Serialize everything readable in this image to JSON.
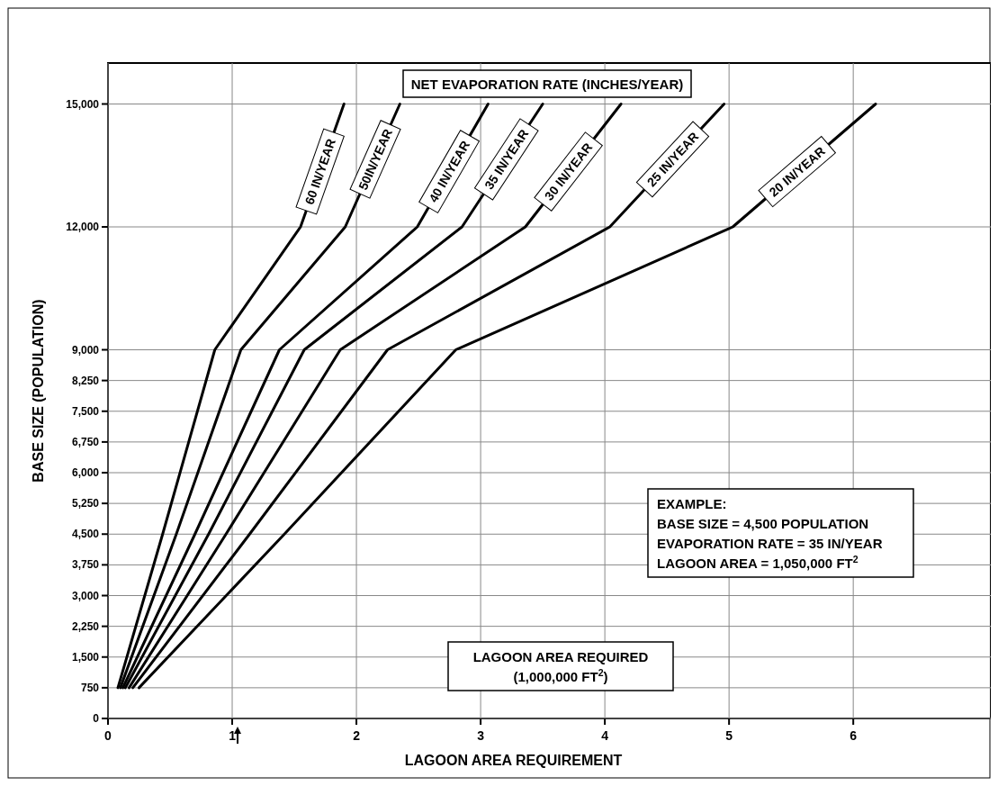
{
  "chart_data": {
    "type": "line",
    "xlabel": "LAGOON AREA REQUIREMENT",
    "ylabel": "BASE SIZE (POPULATION)",
    "xlim": [
      0,
      7.1
    ],
    "xticks": [
      0,
      1,
      2,
      3,
      4,
      5,
      6
    ],
    "ylim": [
      0,
      16000
    ],
    "yticks": [
      {
        "value": 0,
        "label": "0"
      },
      {
        "value": 750,
        "label": "750"
      },
      {
        "value": 1500,
        "label": "1,500"
      },
      {
        "value": 2250,
        "label": "2,250"
      },
      {
        "value": 3000,
        "label": "3,000"
      },
      {
        "value": 3750,
        "label": "3,750"
      },
      {
        "value": 4500,
        "label": "4,500"
      },
      {
        "value": 5250,
        "label": "5,250"
      },
      {
        "value": 6000,
        "label": "6,000"
      },
      {
        "value": 6750,
        "label": "6,750"
      },
      {
        "value": 7500,
        "label": "7,500"
      },
      {
        "value": 8250,
        "label": "8,250"
      },
      {
        "value": 9000,
        "label": "9,000"
      },
      {
        "value": 12000,
        "label": "12,000"
      },
      {
        "value": 15000,
        "label": "15,000"
      }
    ],
    "grid": true,
    "marker": "none",
    "line_style": "solid",
    "series": [
      {
        "name": "60 IN/YEAR",
        "color": "#000000",
        "x": [
          0.08,
          0.44,
          0.86,
          1.55,
          1.9
        ],
        "values": [
          750,
          4500,
          9000,
          12000,
          15000
        ]
      },
      {
        "name": "50IN/YEAR",
        "color": "#000000",
        "x": [
          0.1,
          0.55,
          1.07,
          1.91,
          2.35
        ],
        "values": [
          750,
          4500,
          9000,
          12000,
          15000
        ]
      },
      {
        "name": "40 IN/YEAR",
        "color": "#000000",
        "x": [
          0.12,
          0.7,
          1.38,
          2.49,
          3.06
        ],
        "values": [
          750,
          4500,
          9000,
          12000,
          15000
        ]
      },
      {
        "name": "35 IN/YEAR",
        "color": "#000000",
        "x": [
          0.14,
          0.81,
          1.58,
          2.85,
          3.5
        ],
        "values": [
          750,
          4500,
          9000,
          12000,
          15000
        ]
      },
      {
        "name": "30 IN/YEAR",
        "color": "#000000",
        "x": [
          0.17,
          0.95,
          1.87,
          3.36,
          4.13
        ],
        "values": [
          750,
          4500,
          9000,
          12000,
          15000
        ]
      },
      {
        "name": "25 IN/YEAR",
        "color": "#000000",
        "x": [
          0.2,
          1.14,
          2.25,
          4.04,
          4.96
        ],
        "values": [
          750,
          4500,
          9000,
          12000,
          15000
        ]
      },
      {
        "name": "20 IN/YEAR",
        "color": "#000000",
        "x": [
          0.25,
          1.42,
          2.8,
          5.03,
          6.18
        ],
        "values": [
          750,
          4500,
          9000,
          12000,
          15000
        ]
      }
    ],
    "annotations": [
      "NET EVAPORATION RATE (INCHES/YEAR)",
      "LAGOON AREA REQUIRED",
      "(1,000,000 FT$^{2}$)",
      "EXAMPLE:",
      "BASE SIZE = 4,500 POPULATION",
      "EVAPORATION RATE = 35 IN/YEAR",
      "LAGOON AREA = 1,050,000 FT$^{2}$"
    ]
  }
}
